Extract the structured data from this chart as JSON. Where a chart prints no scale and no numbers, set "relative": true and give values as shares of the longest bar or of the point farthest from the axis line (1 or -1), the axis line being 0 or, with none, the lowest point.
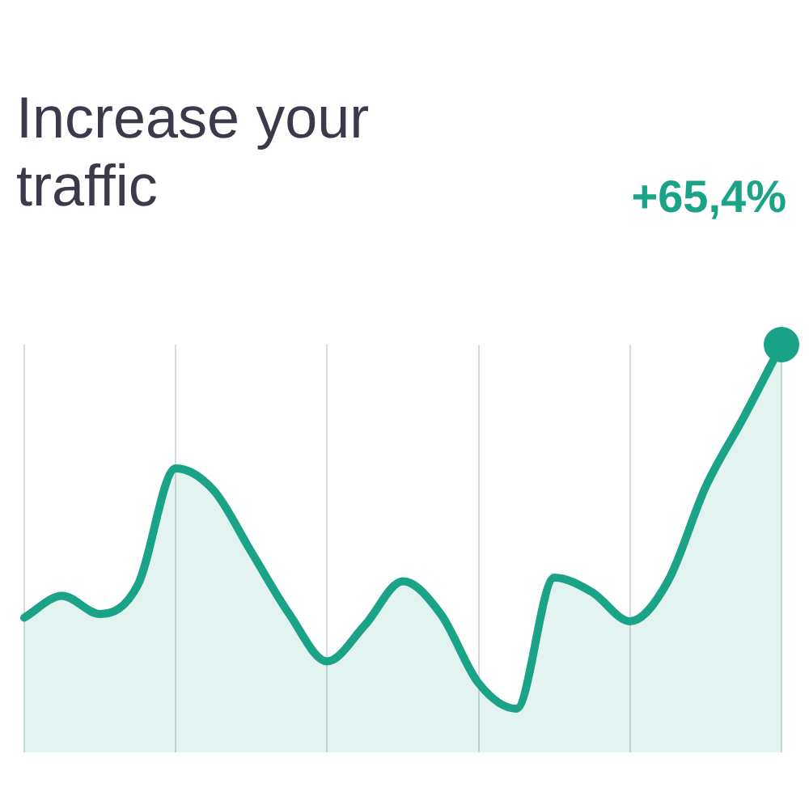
{
  "chart_data": {
    "type": "area",
    "title": "Increase your traffic",
    "annotations": [
      "+65,4%"
    ],
    "relative": true,
    "grid": "x",
    "categories": [
      null,
      null,
      null,
      null,
      null,
      null,
      null,
      null,
      null,
      null,
      null,
      null,
      null,
      null,
      null,
      null,
      null,
      null,
      null,
      null,
      null
    ],
    "series": [
      {
        "color": "#1aa386",
        "values": [
          0.25,
          0.31,
          0.26,
          0.34,
          0.66,
          0.6,
          0.43,
          0.26,
          0.13,
          0.23,
          0.35,
          0.26,
          0.07,
          0,
          0.36,
          0.32,
          0.24,
          0.35,
          0.61,
          0.8,
          1
        ]
      }
    ]
  }
}
